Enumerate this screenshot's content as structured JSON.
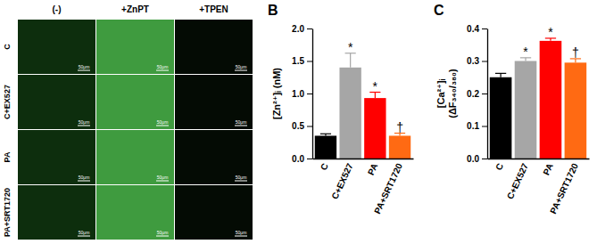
{
  "image_grid": {
    "columns": [
      "(-)",
      "+ZnPT",
      "+TPEN"
    ],
    "rows": [
      "C",
      "C+EX527",
      "PA",
      "PA+SRT1720"
    ],
    "scale_bar": "50μm"
  },
  "chart_data": [
    {
      "type": "bar",
      "title": "B",
      "y_label": [
        "[Zn²⁺]ᵢ (nM)"
      ],
      "categories": [
        "C",
        "C+EX527",
        "PA",
        "PA+SRT1720"
      ],
      "values": [
        0.35,
        1.4,
        0.93,
        0.35
      ],
      "errors": [
        0.03,
        0.22,
        0.09,
        0.04
      ],
      "annotations": [
        null,
        "*",
        "*",
        "†"
      ],
      "colors": [
        "#000000",
        "#a6a6a6",
        "#ff0000",
        "#ff6a13"
      ],
      "ylim": [
        0,
        2
      ],
      "yticks": [
        {
          "value": 0,
          "label": "0.0"
        },
        0.5,
        {
          "value": 1,
          "label": "1.0"
        },
        1.5,
        {
          "value": 2,
          "label": "2.0"
        }
      ],
      "grid": false
    },
    {
      "type": "bar",
      "title": "C",
      "y_label": [
        "[Ca²⁺]ᵢ",
        "(ΔF₃₄₀/₃₈₀)"
      ],
      "categories": [
        "C",
        "C+EX527",
        "PA",
        "PA+SRT1720"
      ],
      "values": [
        0.25,
        0.3,
        0.362,
        0.295
      ],
      "errors": [
        0.012,
        0.01,
        0.008,
        0.012
      ],
      "annotations": [
        null,
        "*",
        "*",
        "†"
      ],
      "colors": [
        "#000000",
        "#a6a6a6",
        "#ff0000",
        "#ff6a13"
      ],
      "ylim": [
        0,
        0.4
      ],
      "yticks": [
        {
          "value": 0,
          "label": "0.0"
        },
        0.1,
        0.2,
        0.3,
        0.4
      ],
      "grid": false
    }
  ]
}
